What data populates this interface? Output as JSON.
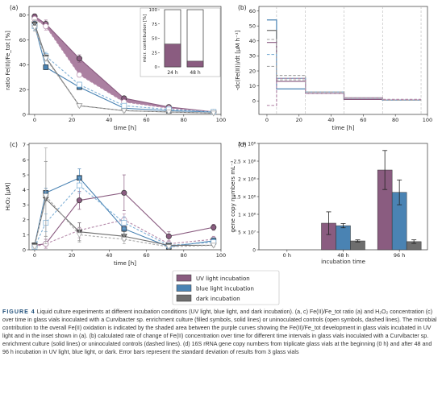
{
  "colors": {
    "uv": "#8a5c80",
    "uv_fill": "#9c6a90",
    "blue": "#4a83b3",
    "blue_light": "#7fb0d6",
    "dark": "#6e6e6e",
    "dark_light": "#a8a8a8",
    "grid_dashed": "#b8b8b8"
  },
  "chart_data": [
    {
      "panel": "a",
      "type": "line",
      "ylabel": "ratio Fe(II)/Fe_tot [%]",
      "xlabel": "time [h]",
      "xlim": [
        -3,
        100
      ],
      "ylim": [
        0,
        87
      ],
      "xticks": [
        0,
        20,
        40,
        60,
        80,
        100
      ],
      "yticks": [
        0,
        20,
        40,
        60,
        80
      ],
      "series": [
        {
          "key": "uv",
          "style": "solid",
          "marker": "circle",
          "x": [
            0,
            6,
            24,
            48,
            72,
            96
          ],
          "y": [
            79,
            73,
            45,
            13,
            6,
            2
          ],
          "err": [
            2,
            3,
            3,
            1,
            1,
            1
          ]
        },
        {
          "key": "uv",
          "style": "dashed",
          "marker": "circle-open",
          "x": [
            0,
            6,
            24,
            48,
            72,
            96
          ],
          "y": [
            77,
            71,
            32,
            10,
            5,
            2
          ],
          "err": [
            2,
            3,
            2,
            1,
            1,
            1
          ]
        },
        {
          "key": "blue",
          "style": "solid",
          "marker": "square",
          "x": [
            0,
            6,
            24,
            48,
            72,
            96
          ],
          "y": [
            72,
            38,
            22,
            5,
            3,
            2
          ],
          "err": [
            3,
            2,
            2,
            1,
            1,
            1
          ]
        },
        {
          "key": "blue",
          "style": "dashed",
          "marker": "square-open",
          "x": [
            0,
            6,
            24,
            48,
            72,
            96
          ],
          "y": [
            71,
            47,
            24,
            7,
            4,
            2
          ],
          "err": [
            3,
            3,
            2,
            1,
            1,
            1
          ]
        },
        {
          "key": "dark",
          "style": "solid",
          "marker": "triangle",
          "x": [
            0,
            6,
            24,
            48,
            72,
            96
          ],
          "y": [
            73,
            46,
            7,
            3,
            2,
            1
          ],
          "err": [
            3,
            2,
            1,
            1,
            1,
            1
          ]
        },
        {
          "key": "dark",
          "style": "dashed",
          "marker": "triangle-open",
          "x": [
            0,
            6,
            24,
            48,
            72,
            96
          ],
          "y": [
            70,
            45,
            7,
            3,
            2,
            1
          ],
          "err": [
            3,
            2,
            1,
            1,
            1,
            1
          ]
        }
      ],
      "shaded_area": {
        "x": [
          0,
          6,
          24,
          48,
          72,
          96
        ],
        "upper": [
          79,
          73,
          45,
          13,
          6,
          2
        ],
        "lower": [
          77,
          71,
          32,
          10,
          5,
          2
        ]
      }
    },
    {
      "panel": "a-inset",
      "type": "bar",
      "ylabel": "micr. contribution [%]",
      "categories": [
        "24 h",
        "48 h"
      ],
      "values": [
        40,
        10
      ],
      "ylim": [
        0,
        100
      ],
      "yticks": [
        0,
        25,
        50,
        75,
        100
      ]
    },
    {
      "panel": "b",
      "type": "line",
      "ylabel": "-dc(Fe(II))/dt [μM h⁻¹]",
      "xlabel": "time [h]",
      "xlim": [
        -5,
        100
      ],
      "ylim": [
        -9,
        63
      ],
      "xticks": [
        0,
        20,
        40,
        60,
        80,
        100
      ],
      "yticks": [
        0,
        10,
        20,
        30,
        40,
        50,
        60
      ],
      "interval_edges": [
        0,
        6,
        24,
        48,
        72,
        96
      ],
      "series": [
        {
          "key": "blue",
          "style": "solid",
          "values": [
            54,
            8,
            5,
            1,
            0.5
          ]
        },
        {
          "key": "dark",
          "style": "solid",
          "values": [
            47,
            15,
            6,
            2,
            0.5
          ]
        },
        {
          "key": "uv",
          "style": "solid",
          "values": [
            39,
            13,
            5,
            1,
            0.5
          ]
        },
        {
          "key": "dark",
          "style": "dashed",
          "values": [
            41,
            17,
            6,
            2,
            0.5
          ]
        },
        {
          "key": "blue",
          "style": "dashed",
          "values": [
            31,
            15,
            6,
            2,
            0.5
          ]
        },
        {
          "key": "dark",
          "style": "dashed-light",
          "values": [
            23,
            14,
            6,
            2,
            0.5
          ]
        },
        {
          "key": "uv",
          "style": "dashed",
          "values": [
            -3,
            15,
            5,
            2,
            1
          ]
        }
      ]
    },
    {
      "panel": "c",
      "type": "line",
      "ylabel": "H₂O₂ [μM]",
      "xlabel": "time [h]",
      "xlim": [
        -3,
        100
      ],
      "ylim": [
        0,
        7.1
      ],
      "xticks": [
        0,
        20,
        40,
        60,
        80,
        100
      ],
      "yticks": [
        0,
        1,
        2,
        3,
        4,
        5,
        6,
        7
      ],
      "series": [
        {
          "key": "uv",
          "style": "solid",
          "marker": "circle",
          "x": [
            0,
            6,
            24,
            48,
            72,
            96
          ],
          "y": [
            0.3,
            0.4,
            3.3,
            3.8,
            0.9,
            1.5
          ],
          "err": [
            0.1,
            0.3,
            0.6,
            1.2,
            0.3,
            0.2
          ]
        },
        {
          "key": "uv",
          "style": "dashed",
          "marker": "circle-open",
          "x": [
            0,
            6,
            24,
            48,
            72,
            96
          ],
          "y": [
            0.2,
            0.4,
            1.3,
            2.0,
            0.4,
            0.7
          ],
          "err": [
            0.1,
            0.3,
            0.5,
            0.4,
            0.2,
            0.2
          ]
        },
        {
          "key": "blue",
          "style": "solid",
          "marker": "square",
          "x": [
            0,
            6,
            24,
            48,
            72,
            96
          ],
          "y": [
            0.3,
            3.8,
            4.8,
            1.4,
            0.2,
            0.6
          ],
          "err": [
            0.1,
            0.3,
            0.6,
            0.4,
            0.1,
            0.2
          ]
        },
        {
          "key": "blue",
          "style": "dashed",
          "marker": "square-open",
          "x": [
            0,
            6,
            24,
            48,
            72,
            96
          ],
          "y": [
            0.2,
            1.8,
            4.3,
            1.8,
            0.3,
            0.5
          ],
          "err": [
            0.1,
            0.6,
            0.5,
            0.4,
            0.1,
            0.2
          ]
        },
        {
          "key": "dark",
          "style": "solid",
          "marker": "triangle",
          "x": [
            0,
            6,
            24,
            48,
            72,
            96
          ],
          "y": [
            0.3,
            3.4,
            1.2,
            0.9,
            0.3,
            0.3
          ],
          "err": [
            0.1,
            2.5,
            0.6,
            0.3,
            0.1,
            0.1
          ]
        },
        {
          "key": "dark",
          "style": "dashed",
          "marker": "triangle-open",
          "x": [
            0,
            6,
            24,
            48,
            72,
            96
          ],
          "y": [
            0.2,
            3.6,
            1.0,
            0.7,
            0.2,
            0.3
          ],
          "err": [
            0.1,
            3.2,
            0.5,
            0.3,
            0.1,
            0.1
          ]
        }
      ]
    },
    {
      "panel": "d",
      "type": "bar",
      "ylabel": "gene copy numbers mL⁻¹",
      "xlabel": "incubation time",
      "categories": [
        "0 h",
        "48 h",
        "96 h"
      ],
      "ylim": [
        0,
        300000000.0
      ],
      "yticks": [
        0,
        50000000.0,
        100000000.0,
        150000000.0,
        200000000.0,
        250000000.0,
        300000000.0
      ],
      "ytick_labels": [
        "0",
        "5 × 10⁷",
        "1 × 10⁸",
        "1.5 × 10⁸",
        "2 × 10⁸",
        "2.5 × 10⁸",
        "3 × 10⁸"
      ],
      "series": [
        {
          "key": "uv",
          "values": [
            0,
            75000000.0,
            225000000.0
          ],
          "err": [
            0,
            32000000.0,
            55000000.0
          ]
        },
        {
          "key": "blue",
          "values": [
            0,
            68000000.0,
            162000000.0
          ],
          "err": [
            0,
            6000000.0,
            35000000.0
          ]
        },
        {
          "key": "dark",
          "values": [
            0,
            25000000.0,
            23000000.0
          ],
          "err": [
            0,
            3000000.0,
            5000000.0
          ]
        }
      ]
    }
  ],
  "panel_labels": [
    "(a)",
    "(b)",
    "(c)",
    "(d)"
  ],
  "legend": [
    {
      "key": "uv",
      "label": "UV light incubation"
    },
    {
      "key": "blue",
      "label": "blue light incubation"
    },
    {
      "key": "dark",
      "label": "dark incubation"
    }
  ],
  "caption": {
    "label": "FIGURE 4",
    "text": "Liquid culture experiments at different incubation conditions (UV light, blue light, and dark incubation). (a, c) Fe(II)/Fe_tot ratio (a) and H₂O₂ concentration (c) over time in glass vials inoculated with a Curvibacter sp. enrichment culture (filled symbols, solid lines) or uninoculated controls (open symbols, dashed lines). The microbial contribution to the overall Fe(II) oxidation is indicated by the shaded area between the purple curves showing the Fe(II)/Fe_tot development in glass vials incubated in UV light and in the inset shown in (a). (b) calculated rate of change of Fe(II) concentration over time for different time intervals in glass vials inoculated with a Curvibacter sp. enrichment culture (solid lines) or uninoculated controls (dashed lines). (d) 16S rRNA gene copy numbers from triplicate glass vials at the beginning (0 h) and after 48 and 96 h incubation in UV light, blue light, or dark. Error bars represent the standard deviation of results from 3 glass vials"
  }
}
